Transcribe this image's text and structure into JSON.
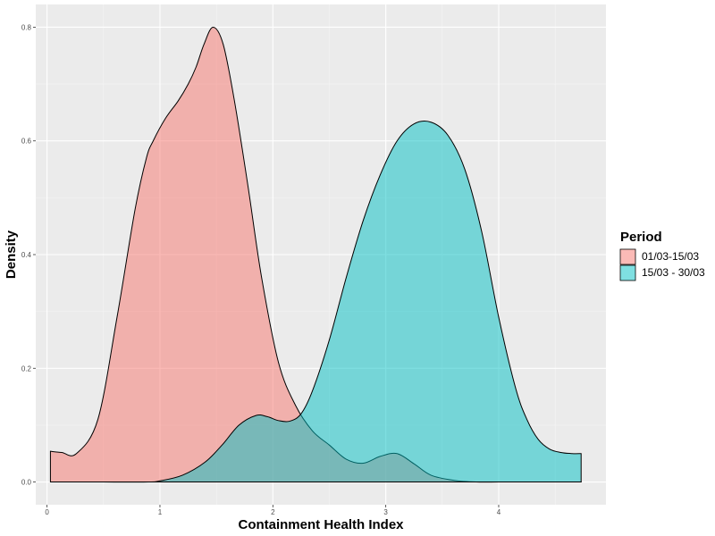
{
  "chart_data": {
    "type": "area",
    "xlabel": "Containment Health Index",
    "ylabel": "Density",
    "xlim": [
      -0.1,
      4.95
    ],
    "ylim": [
      -0.04,
      0.84
    ],
    "x_ticks": [
      0,
      1,
      2,
      3,
      4
    ],
    "y_ticks": [
      0.0,
      0.2,
      0.4,
      0.6,
      0.8
    ],
    "y_tick_labels": [
      "0.0",
      "0.2",
      "0.4",
      "0.6",
      "0.8"
    ],
    "grid": true,
    "legend": {
      "title": "Period",
      "position": "right"
    },
    "series": [
      {
        "name": "01/03-15/03",
        "color": "#F8766D",
        "fill_opacity": 0.5,
        "x": [
          0.03,
          0.13,
          0.26,
          0.45,
          0.62,
          0.78,
          0.88,
          0.94,
          1.05,
          1.16,
          1.25,
          1.32,
          1.39,
          1.47,
          1.56,
          1.66,
          1.78,
          1.9,
          2.05,
          2.2,
          2.35,
          2.5,
          2.65,
          2.8,
          2.95,
          3.1,
          3.25,
          3.4,
          3.6,
          3.8,
          4.0,
          4.2,
          4.4,
          4.6,
          4.73
        ],
        "y": [
          0.054,
          0.052,
          0.05,
          0.11,
          0.29,
          0.48,
          0.57,
          0.6,
          0.64,
          0.67,
          0.7,
          0.73,
          0.77,
          0.8,
          0.77,
          0.67,
          0.52,
          0.36,
          0.21,
          0.135,
          0.09,
          0.065,
          0.04,
          0.033,
          0.045,
          0.05,
          0.032,
          0.012,
          0.003,
          0.0,
          0.0,
          0.0,
          0.0,
          0.0,
          0.0
        ]
      },
      {
        "name": "15/03 - 30/03",
        "color": "#00BFC4",
        "fill_opacity": 0.5,
        "x": [
          0.03,
          0.5,
          0.9,
          1.0,
          1.2,
          1.4,
          1.55,
          1.7,
          1.85,
          1.95,
          2.05,
          2.15,
          2.25,
          2.35,
          2.5,
          2.65,
          2.8,
          2.95,
          3.1,
          3.25,
          3.4,
          3.55,
          3.7,
          3.85,
          4.0,
          4.15,
          4.25,
          4.35,
          4.45,
          4.55,
          4.65,
          4.73
        ],
        "y": [
          0.0,
          0.0,
          0.0,
          0.002,
          0.012,
          0.035,
          0.065,
          0.1,
          0.117,
          0.115,
          0.108,
          0.107,
          0.12,
          0.16,
          0.25,
          0.36,
          0.46,
          0.54,
          0.6,
          0.63,
          0.633,
          0.61,
          0.55,
          0.44,
          0.29,
          0.165,
          0.11,
          0.075,
          0.058,
          0.052,
          0.05,
          0.05
        ]
      }
    ]
  }
}
